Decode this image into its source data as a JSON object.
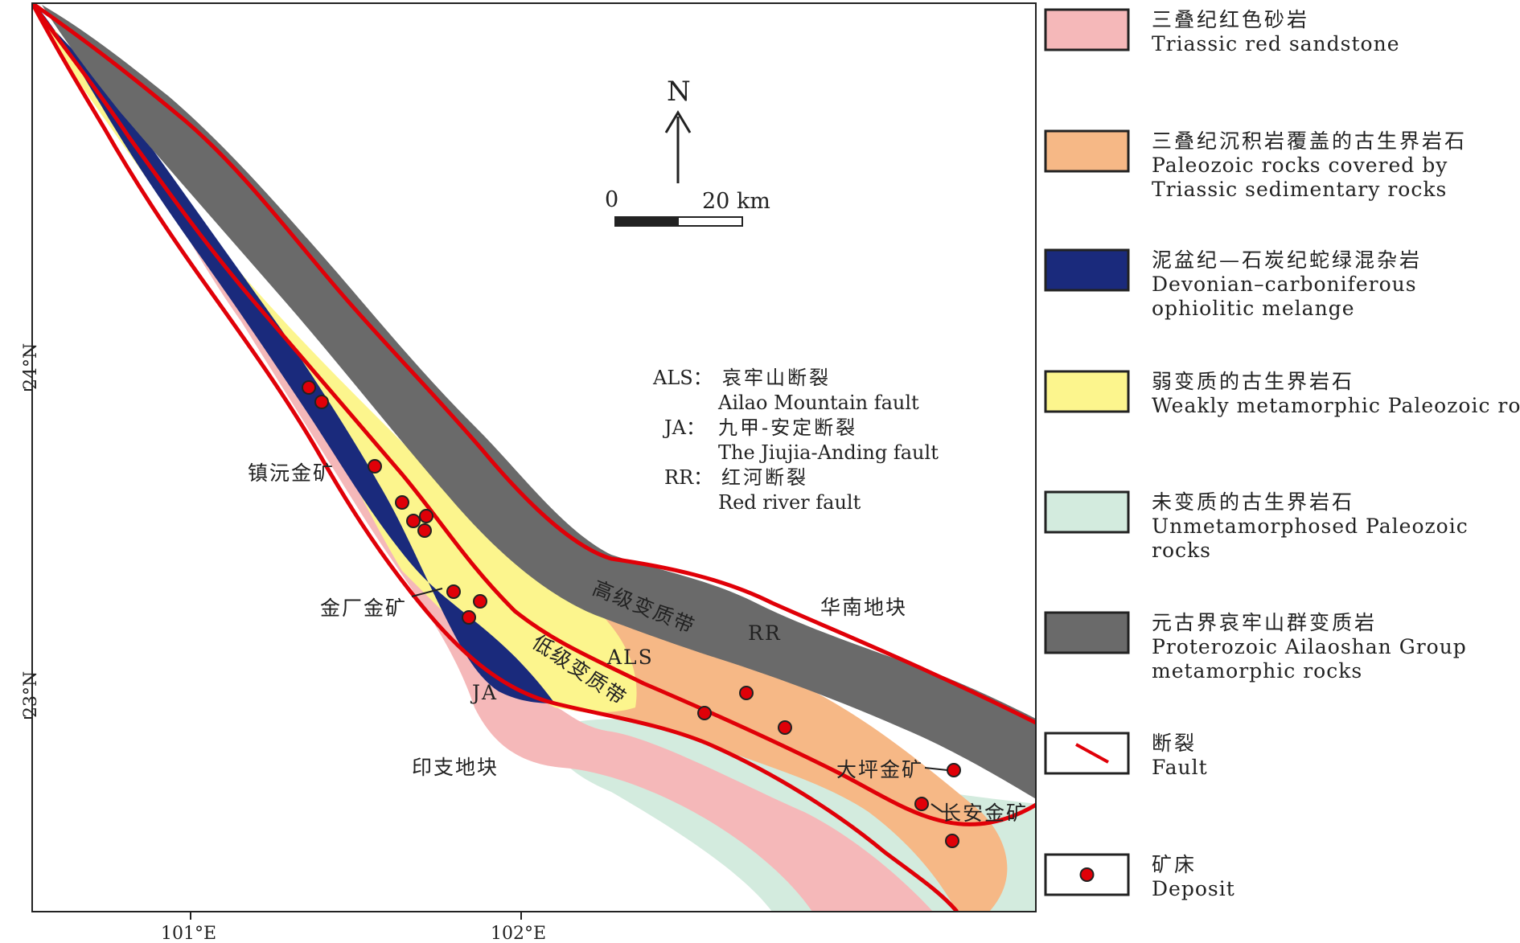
{
  "colors": {
    "triassic_red_sandstone": "#f5b8b9",
    "paleozoic_covered": "#f6b886",
    "ophiolitic_melange": "#1a2a7c",
    "weakly_metamorphic": "#fcf58d",
    "unmetamorphosed": "#d3ebde",
    "ailaoshan_group": "#6a6a6a",
    "fault": "#e00008",
    "deposit": "#e00008"
  },
  "coords": {
    "lon_101": "101°E",
    "lon_102": "102°E",
    "lat_24": "24°N",
    "lat_23": "23°N"
  },
  "north_arrow": {
    "letter": "N"
  },
  "scale_bar": {
    "start": "0",
    "end": "20 km"
  },
  "abbreviations": [
    {
      "code": "ALS：",
      "cn": "哀牢山断裂",
      "en": "Ailao Mountain fault"
    },
    {
      "code": "JA：",
      "cn": "九甲-安定断裂",
      "en": "The Jiujia-Anding fault"
    },
    {
      "code": "RR：",
      "cn": "红河断裂",
      "en": "Red river fault"
    }
  ],
  "map_labels": {
    "zhenyuan": "镇沅金矿",
    "jinchang": "金厂金矿",
    "daping": "大坪金矿",
    "changan": "长安金矿",
    "south_china_block": "华南地块",
    "indochina_block": "印支地块",
    "high_grade_zone": "高级变质带",
    "low_grade_zone": "低级变质带",
    "rr": "RR",
    "als": "ALS",
    "ja": "JA"
  },
  "legend": [
    {
      "cn": "三叠纪红色砂岩",
      "en": [
        "Triassic red sandstone"
      ],
      "kind": "fill",
      "color": "triassic_red_sandstone"
    },
    {
      "cn": "三叠纪沉积岩覆盖的古生界岩石",
      "en": [
        "Paleozoic rocks covered by",
        "Triassic sedimentary rocks"
      ],
      "kind": "fill",
      "color": "paleozoic_covered"
    },
    {
      "cn": "泥盆纪—石炭纪蛇绿混杂岩",
      "en": [
        "Devonian–carboniferous",
        "ophiolitic melange"
      ],
      "kind": "fill",
      "color": "ophiolitic_melange"
    },
    {
      "cn": "弱变质的古生界岩石",
      "en": [
        "Weakly metamorphic Paleozoic rocks"
      ],
      "kind": "fill",
      "color": "weakly_metamorphic"
    },
    {
      "cn": "未变质的古生界岩石",
      "en": [
        "Unmetamorphosed Paleozoic",
        "rocks"
      ],
      "kind": "fill",
      "color": "unmetamorphosed"
    },
    {
      "cn": "元古界哀牢山群变质岩",
      "en": [
        "Proterozoic Ailaoshan Group",
        "metamorphic rocks"
      ],
      "kind": "fill",
      "color": "ailaoshan_group"
    },
    {
      "cn": "断裂",
      "en": [
        "Fault"
      ],
      "kind": "line",
      "color": "fault"
    },
    {
      "cn": "矿床",
      "en": [
        "Deposit"
      ],
      "kind": "dot",
      "color": "deposit"
    }
  ]
}
